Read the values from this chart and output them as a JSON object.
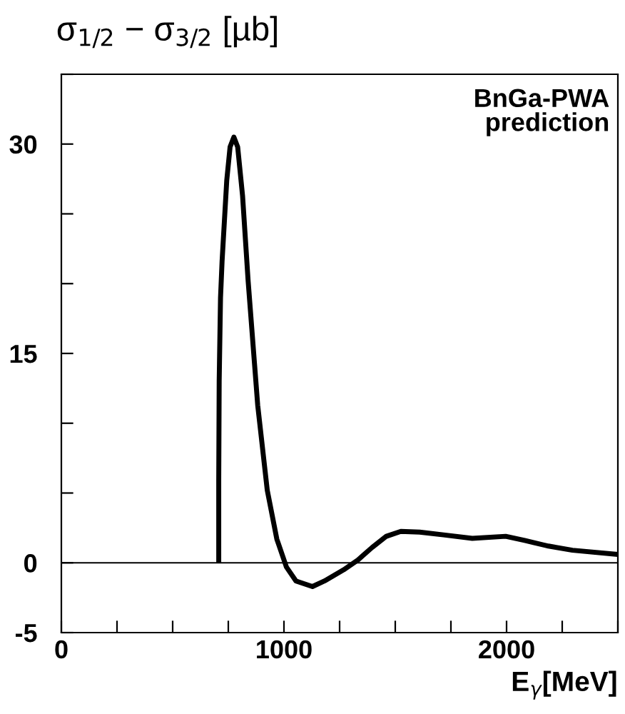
{
  "chart_data": {
    "type": "line",
    "ylabel": "σ$_{1/2}$ − σ$_{3/2}$ [µb]",
    "xlabel": "E$_{γ}$[MeV]",
    "annotations": [
      "BnGa-PWA\nprediction"
    ],
    "xlim": [
      0,
      2500
    ],
    "ylim": [
      -5,
      35
    ],
    "xticks": [
      0,
      {
        "value": 250,
        "label": null
      },
      {
        "value": 500,
        "label": null
      },
      {
        "value": 750,
        "label": null
      },
      1000,
      {
        "value": 1250,
        "label": null
      },
      {
        "value": 1500,
        "label": null
      },
      {
        "value": 1750,
        "label": null
      },
      2000,
      {
        "value": 2250,
        "label": null
      },
      {
        "value": 2500,
        "label": null
      }
    ],
    "yticks": [
      -5,
      0,
      {
        "value": 5,
        "label": null
      },
      {
        "value": 10,
        "label": null
      },
      15,
      {
        "value": 20,
        "label": null
      },
      {
        "value": 25,
        "label": null
      },
      30,
      {
        "value": 35,
        "label": null
      }
    ],
    "ref_lines": [
      {
        "axis": "y",
        "value": 0,
        "color": "#000000"
      }
    ],
    "grid": false,
    "legend": false,
    "marker": "none",
    "line_style": "solid",
    "series": [
      {
        "color": "#000000",
        "x": [
          707,
          707,
          709,
          715,
          722,
          743,
          758,
          775,
          792,
          814,
          839,
          882,
          925,
          968,
          1011,
          1054,
          1128,
          1182,
          1268,
          1332,
          1396,
          1460,
          1525,
          1610,
          1717,
          1846,
          1996,
          2081,
          2188,
          2296,
          2500
        ],
        "values": [
          0,
          6,
          13,
          19,
          21.6,
          27.4,
          29.8,
          30.5,
          29.8,
          26.3,
          20.2,
          11.3,
          5.2,
          1.7,
          -0.3,
          -1.3,
          -1.7,
          -1.3,
          -0.5,
          0.2,
          1.1,
          1.9,
          2.25,
          2.2,
          2.0,
          1.75,
          1.9,
          1.6,
          1.2,
          0.9,
          0.6
        ]
      }
    ]
  }
}
